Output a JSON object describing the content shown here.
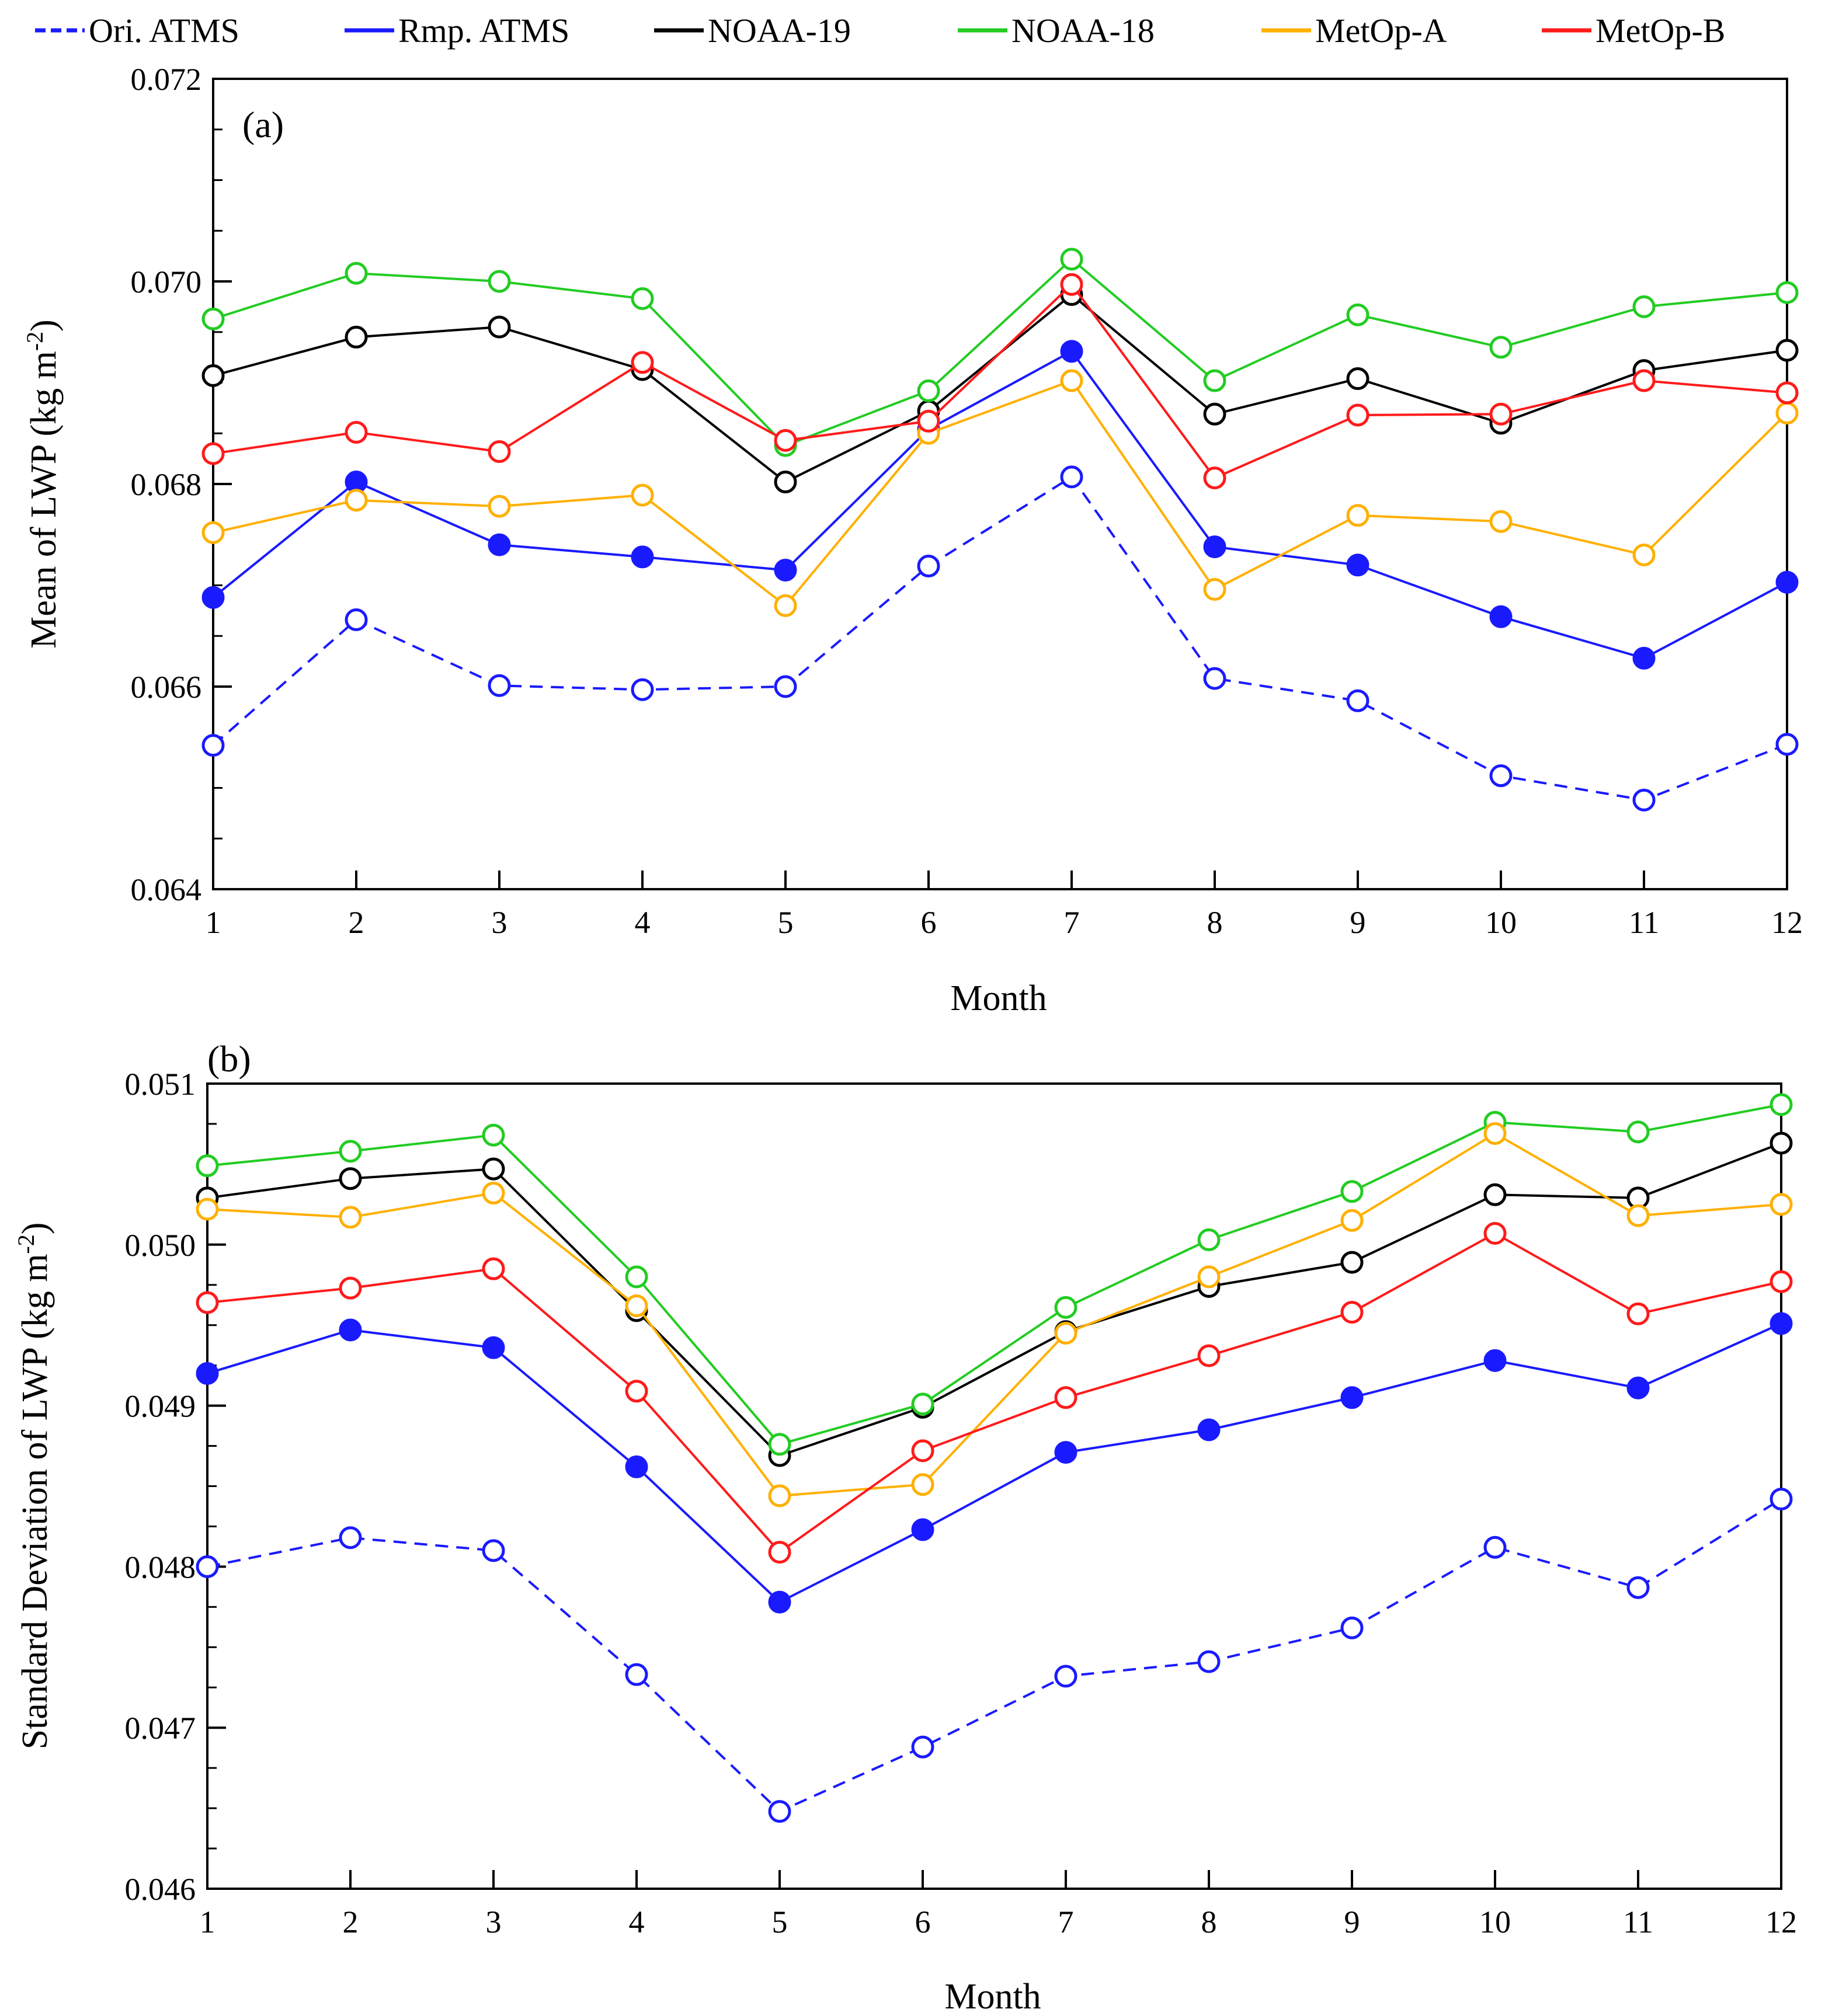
{
  "legend": [
    {
      "name": "Ori. ATMS",
      "color": "#1a1aff",
      "dashed": true
    },
    {
      "name": "Rmp. ATMS",
      "color": "#1a1aff",
      "dashed": false
    },
    {
      "name": "NOAA-19",
      "color": "#000000",
      "dashed": false
    },
    {
      "name": "NOAA-18",
      "color": "#22cc22",
      "dashed": false
    },
    {
      "name": "MetOp-A",
      "color": "#ffb000",
      "dashed": false
    },
    {
      "name": "MetOp-B",
      "color": "#ff1a1a",
      "dashed": false
    }
  ],
  "chart_data": [
    {
      "type": "line",
      "panel_label": "(a)",
      "xlabel": "Month",
      "ylabel": "Mean of LWP (kg m",
      "ylabel_sup": "-2",
      "ylabel_close": ")",
      "x": [
        1,
        2,
        3,
        4,
        5,
        6,
        7,
        8,
        9,
        10,
        11,
        12
      ],
      "xlim": [
        1,
        12
      ],
      "ylim": [
        0.064,
        0.072
      ],
      "yticks": [
        "0.064",
        "0.066",
        "0.068",
        "0.070",
        "0.072"
      ],
      "xticks": [
        "1",
        "2",
        "3",
        "4",
        "5",
        "6",
        "7",
        "8",
        "9",
        "10",
        "11",
        "12"
      ],
      "series": [
        {
          "name": "Ori. ATMS",
          "color": "#1a1aff",
          "dashed": true,
          "marker": "open",
          "values": [
            0.06542,
            0.06666,
            0.06601,
            0.06597,
            0.066,
            0.06719,
            0.06807,
            0.06608,
            0.06586,
            0.06512,
            0.06488,
            0.06543
          ]
        },
        {
          "name": "Rmp. ATMS",
          "color": "#1a1aff",
          "dashed": false,
          "marker": "filled",
          "values": [
            0.06688,
            0.06802,
            0.0674,
            0.06728,
            0.06715,
            0.06854,
            0.06931,
            0.06738,
            0.0672,
            0.06669,
            0.06628,
            0.06703
          ]
        },
        {
          "name": "NOAA-19",
          "color": "#000000",
          "dashed": false,
          "marker": "open",
          "values": [
            0.06907,
            0.06945,
            0.06955,
            0.06913,
            0.06802,
            0.06872,
            0.06987,
            0.06869,
            0.06904,
            0.0686,
            0.06912,
            0.06932
          ]
        },
        {
          "name": "NOAA-18",
          "color": "#22cc22",
          "dashed": false,
          "marker": "open",
          "values": [
            0.06963,
            0.07008,
            0.07,
            0.06983,
            0.06838,
            0.06892,
            0.07022,
            0.06902,
            0.06967,
            0.06935,
            0.06975,
            0.06989
          ]
        },
        {
          "name": "MetOp-A",
          "color": "#ffb000",
          "dashed": false,
          "marker": "open",
          "values": [
            0.06752,
            0.06784,
            0.06778,
            0.06789,
            0.0668,
            0.0685,
            0.06902,
            0.06696,
            0.06769,
            0.06763,
            0.0673,
            0.0687
          ]
        },
        {
          "name": "MetOp-B",
          "color": "#ff1a1a",
          "dashed": false,
          "marker": "open",
          "values": [
            0.0683,
            0.06851,
            0.06832,
            0.0692,
            0.06843,
            0.06862,
            0.06997,
            0.06806,
            0.06868,
            0.06869,
            0.06902,
            0.0689
          ]
        }
      ]
    },
    {
      "type": "line",
      "panel_label": "(b)",
      "xlabel": "Month",
      "ylabel": "Standard Deviation of LWP (kg m",
      "ylabel_sup": "-2",
      "ylabel_close": ")",
      "x": [
        1,
        2,
        3,
        4,
        5,
        6,
        7,
        8,
        9,
        10,
        11,
        12
      ],
      "xlim": [
        1,
        12
      ],
      "ylim": [
        0.046,
        0.051
      ],
      "yticks": [
        "0.046",
        "0.047",
        "0.048",
        "0.049",
        "0.050",
        "0.051"
      ],
      "xticks": [
        "1",
        "2",
        "3",
        "4",
        "5",
        "6",
        "7",
        "8",
        "9",
        "10",
        "11",
        "12"
      ],
      "series": [
        {
          "name": "Ori. ATMS",
          "color": "#1a1aff",
          "dashed": true,
          "marker": "open",
          "values": [
            0.048,
            0.04818,
            0.0481,
            0.04733,
            0.04648,
            0.04688,
            0.04732,
            0.04741,
            0.04762,
            0.04812,
            0.04787,
            0.04842
          ]
        },
        {
          "name": "Rmp. ATMS",
          "color": "#1a1aff",
          "dashed": false,
          "marker": "filled",
          "values": [
            0.0492,
            0.04947,
            0.04936,
            0.04862,
            0.04778,
            0.04823,
            0.04871,
            0.04885,
            0.04905,
            0.04928,
            0.04911,
            0.04951
          ]
        },
        {
          "name": "NOAA-19",
          "color": "#000000",
          "dashed": false,
          "marker": "open",
          "values": [
            0.05029,
            0.05041,
            0.05047,
            0.04959,
            0.04869,
            0.04899,
            0.04946,
            0.04974,
            0.04989,
            0.05031,
            0.05029,
            0.05063
          ]
        },
        {
          "name": "NOAA-18",
          "color": "#22cc22",
          "dashed": false,
          "marker": "open",
          "values": [
            0.05049,
            0.05058,
            0.05068,
            0.0498,
            0.04876,
            0.04901,
            0.04961,
            0.05003,
            0.05033,
            0.05076,
            0.0507,
            0.05087
          ]
        },
        {
          "name": "MetOp-A",
          "color": "#ffb000",
          "dashed": false,
          "marker": "open",
          "values": [
            0.05022,
            0.05017,
            0.05032,
            0.04962,
            0.04844,
            0.04851,
            0.04945,
            0.0498,
            0.05015,
            0.05069,
            0.05018,
            0.05025
          ]
        },
        {
          "name": "MetOp-B",
          "color": "#ff1a1a",
          "dashed": false,
          "marker": "open",
          "values": [
            0.04964,
            0.04973,
            0.04985,
            0.04909,
            0.04809,
            0.04872,
            0.04905,
            0.04931,
            0.04958,
            0.05007,
            0.04957,
            0.04977
          ]
        }
      ]
    }
  ]
}
